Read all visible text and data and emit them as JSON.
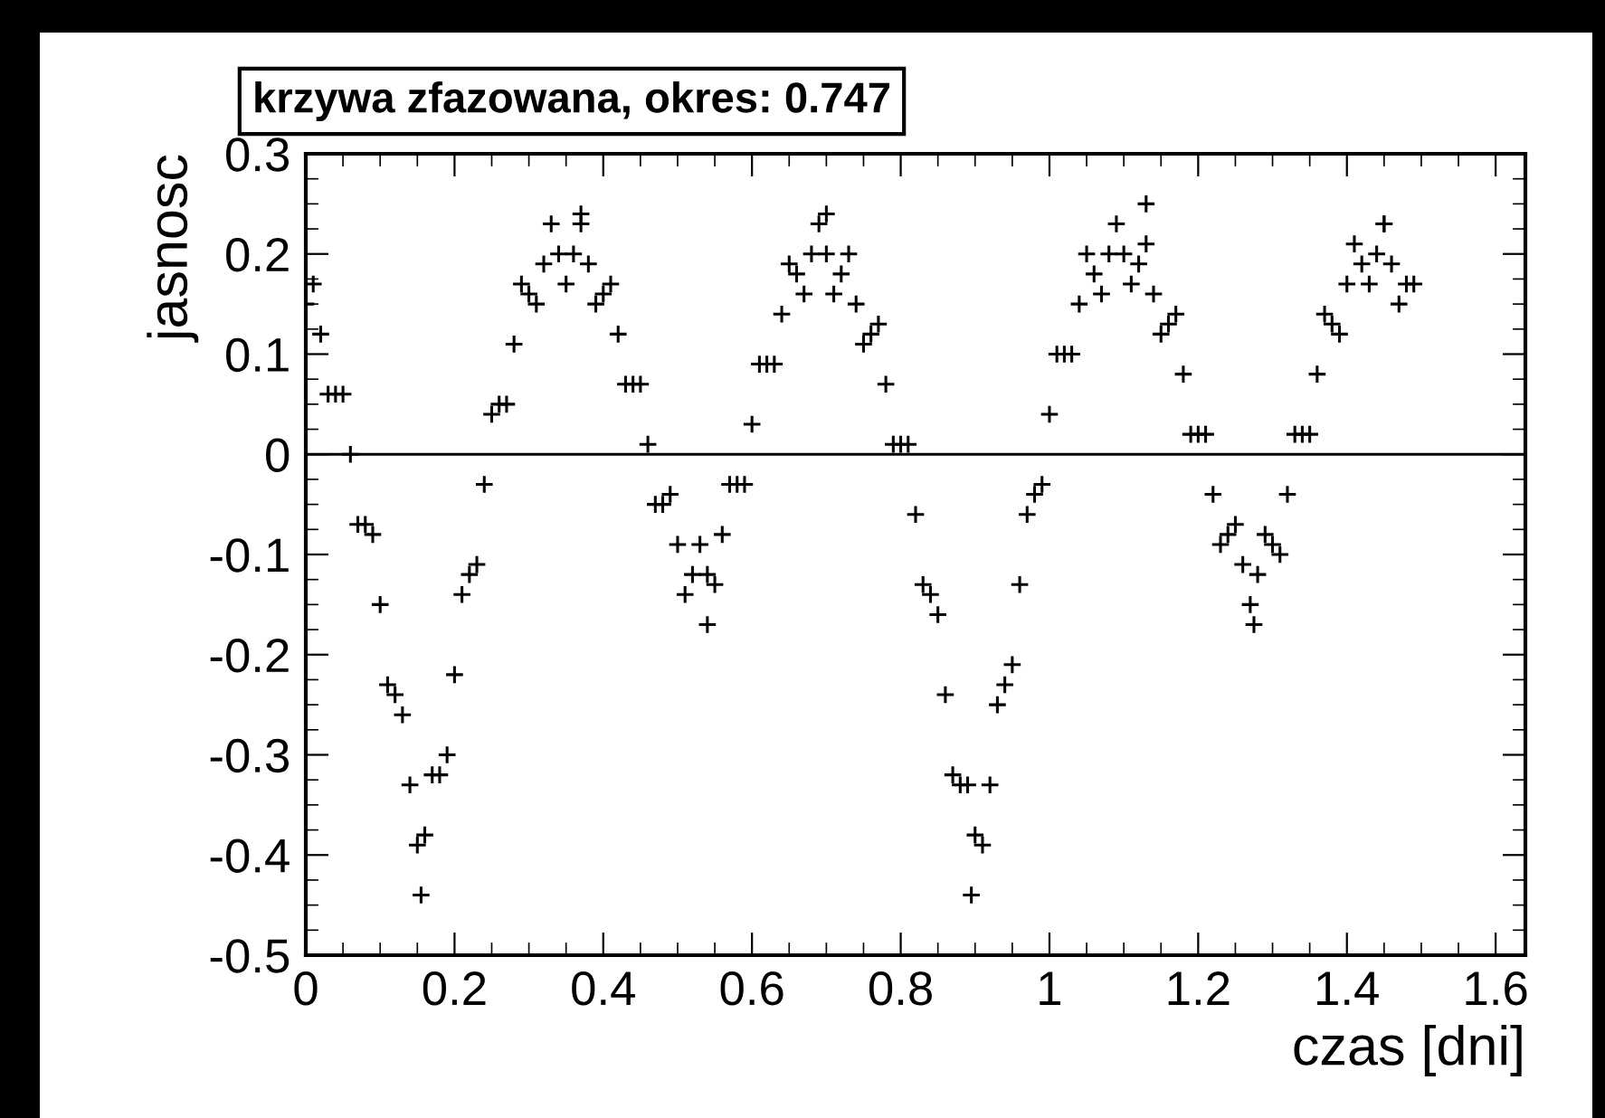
{
  "chart_data": {
    "type": "scatter",
    "title": "krzywa zfazowana, okres: 0.747",
    "xlabel": "czas [dni]",
    "ylabel": "jasnosc",
    "xlim": [
      0,
      1.64
    ],
    "ylim": [
      -0.5,
      0.3
    ],
    "xticks": [
      0,
      0.2,
      0.4,
      0.6,
      0.8,
      1,
      1.2,
      1.4,
      1.6
    ],
    "yticks": [
      -0.5,
      -0.4,
      -0.3,
      -0.2,
      -0.1,
      0,
      0.1,
      0.2,
      0.3
    ],
    "grid": false,
    "legend": false,
    "marker": "cross",
    "ref_lines": [
      {
        "axis": "y",
        "value": 0,
        "label": null,
        "color": "#000000"
      }
    ],
    "series": [
      {
        "color": "#000000",
        "x": [
          0,
          0.02,
          0.04,
          0.06,
          0.08,
          0.1,
          0.12,
          0.14,
          0.16,
          0.18,
          0.2,
          0.22,
          0.24,
          0.26,
          0.28,
          0.3,
          0.32,
          0.34,
          0.36,
          0.38,
          0.4,
          0.42,
          0.44,
          0.46,
          0.48,
          0.5,
          0.52,
          0.54,
          0.56,
          0.58,
          0.6,
          0.62,
          0.64,
          0.66,
          0.68,
          0.7,
          0.72,
          0.74,
          0.76,
          0.78,
          0.8,
          0.82,
          0.84,
          0.86,
          0.88,
          0.9,
          0.92,
          0.94,
          0.96,
          0.98,
          1.0,
          1.02,
          1.04,
          1.06,
          1.08,
          1.1,
          1.12,
          1.14,
          1.16,
          1.18,
          1.2,
          1.22,
          1.24,
          1.26,
          1.28,
          1.3,
          1.32,
          1.34,
          1.36,
          1.38,
          1.4,
          1.42,
          1.44,
          1.46,
          1.48,
          0.01,
          0.03,
          0.05,
          0.07,
          0.09,
          0.11,
          0.13,
          0.15,
          0.17,
          0.19,
          0.21,
          0.23,
          0.25,
          0.27,
          0.29,
          0.31,
          0.33,
          0.35,
          0.37,
          0.39,
          0.41,
          0.43,
          0.45,
          0.47,
          0.49,
          0.51,
          0.53,
          0.55,
          0.57,
          0.59,
          0.61,
          0.63,
          0.65,
          0.67,
          0.69,
          0.71,
          0.73,
          0.75,
          0.77,
          0.79,
          0.81,
          0.83,
          0.85,
          0.87,
          0.89,
          0.91,
          0.93,
          0.95,
          0.97,
          0.99,
          1.01,
          1.03,
          1.05,
          1.07,
          1.09,
          1.11,
          1.13,
          1.15,
          1.17,
          1.19,
          1.21,
          1.23,
          1.25,
          1.27,
          1.29,
          1.31,
          1.33,
          1.35,
          1.37,
          1.39,
          1.41,
          1.43,
          1.45,
          1.47,
          1.49,
          0.37,
          0.155,
          0.54,
          0.7,
          1.13,
          0.895,
          1.275,
          1.45
        ],
        "values": [
          0.15,
          0.12,
          0.06,
          0.0,
          -0.07,
          -0.15,
          -0.24,
          -0.33,
          -0.38,
          -0.32,
          -0.22,
          -0.12,
          -0.03,
          0.05,
          0.11,
          0.16,
          0.19,
          0.2,
          0.2,
          0.19,
          0.16,
          0.12,
          0.07,
          0.01,
          -0.05,
          -0.09,
          -0.12,
          -0.12,
          -0.08,
          -0.03,
          0.03,
          0.09,
          0.14,
          0.18,
          0.2,
          0.2,
          0.18,
          0.15,
          0.12,
          0.07,
          0.01,
          -0.06,
          -0.14,
          -0.24,
          -0.33,
          -0.38,
          -0.33,
          -0.23,
          -0.13,
          -0.04,
          0.04,
          0.1,
          0.15,
          0.18,
          0.2,
          0.2,
          0.19,
          0.16,
          0.13,
          0.08,
          0.02,
          -0.04,
          -0.08,
          -0.11,
          -0.12,
          -0.09,
          -0.04,
          0.02,
          0.08,
          0.13,
          0.17,
          0.19,
          0.2,
          0.19,
          0.17,
          0.17,
          0.06,
          0.06,
          -0.07,
          -0.08,
          -0.23,
          -0.26,
          -0.39,
          -0.32,
          -0.3,
          -0.14,
          -0.11,
          0.04,
          0.05,
          0.17,
          0.15,
          0.23,
          0.17,
          0.23,
          0.15,
          0.17,
          0.07,
          0.07,
          -0.05,
          -0.04,
          -0.14,
          -0.09,
          -0.13,
          -0.03,
          -0.03,
          0.09,
          0.09,
          0.19,
          0.16,
          0.23,
          0.16,
          0.2,
          0.11,
          0.13,
          0.01,
          0.01,
          -0.13,
          -0.16,
          -0.32,
          -0.33,
          -0.39,
          -0.25,
          -0.21,
          -0.06,
          -0.03,
          0.1,
          0.1,
          0.2,
          0.16,
          0.23,
          0.17,
          0.21,
          0.12,
          0.14,
          0.02,
          0.02,
          -0.09,
          -0.07,
          -0.15,
          -0.08,
          -0.1,
          0.02,
          0.02,
          0.14,
          0.12,
          0.21,
          0.17,
          0.23,
          0.15,
          0.17,
          0.24,
          -0.44,
          -0.17,
          0.24,
          0.25,
          -0.44,
          -0.17,
          0.23
        ]
      }
    ]
  }
}
